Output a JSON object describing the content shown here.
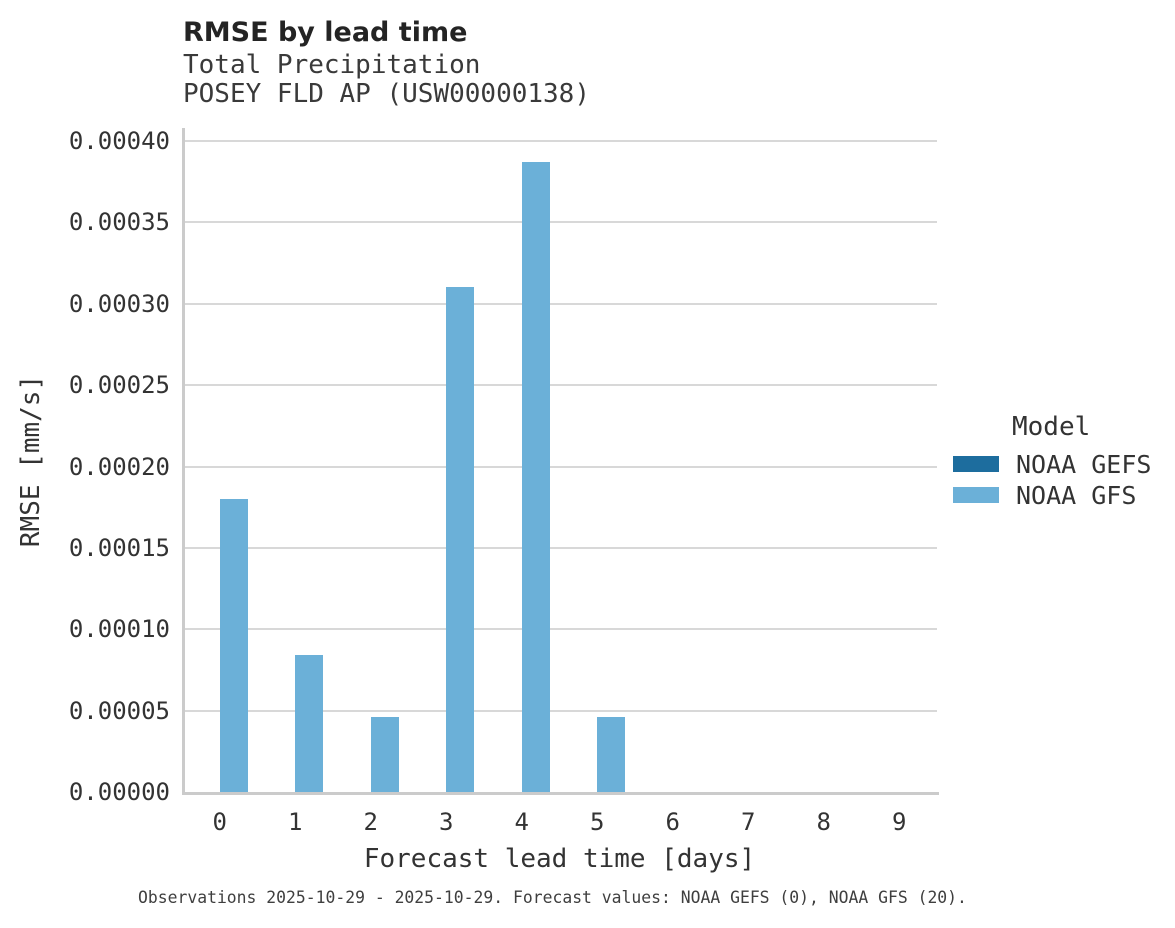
{
  "header": {
    "title": "RMSE by lead time",
    "subtitle_line1": "Total Precipitation",
    "subtitle_line2": "POSEY FLD AP (USW00000138)"
  },
  "chart_data": {
    "type": "bar",
    "title": "RMSE by lead time",
    "subtitle": [
      "Total Precipitation",
      "POSEY FLD AP (USW00000138)"
    ],
    "xlabel": "Forecast lead time [days]",
    "ylabel": "RMSE [mm/s]",
    "categories": [
      "0",
      "1",
      "2",
      "3",
      "4",
      "5",
      "6",
      "7",
      "8",
      "9"
    ],
    "series": [
      {
        "name": "NOAA GEFS",
        "color": "#1d6d9e",
        "values": [
          0,
          0,
          0,
          0,
          0,
          0,
          0,
          0,
          0,
          0
        ]
      },
      {
        "name": "NOAA GFS",
        "color": "#6bb0d8",
        "values": [
          0.00018,
          8.4e-05,
          4.6e-05,
          0.00031,
          0.000387,
          4.6e-05,
          0,
          0,
          0,
          0
        ]
      }
    ],
    "ylim": [
      0,
      0.0004
    ],
    "yticks": [
      0,
      5e-05,
      0.0001,
      0.00015,
      0.0002,
      0.00025,
      0.0003,
      0.00035,
      0.0004
    ],
    "ytick_labels": [
      "0.00000",
      "0.00005",
      "0.00010",
      "0.00015",
      "0.00020",
      "0.00025",
      "0.00030",
      "0.00035",
      "0.00040"
    ],
    "grid": true,
    "legend_title": "Model",
    "legend_position": "right"
  },
  "legend": {
    "title": "Model",
    "entries": [
      {
        "label": "NOAA GEFS",
        "color": "#1d6d9e"
      },
      {
        "label": "NOAA GFS",
        "color": "#6bb0d8"
      }
    ]
  },
  "caption": "Observations 2025-10-29 - 2025-10-29. Forecast values: NOAA GEFS (0), NOAA GFS (20)."
}
